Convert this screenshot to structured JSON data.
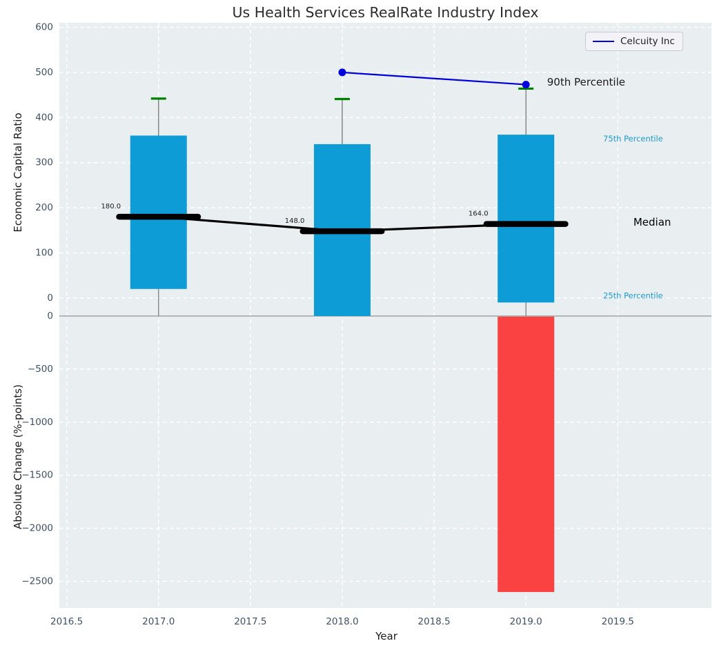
{
  "figure": {
    "title": "Us Health Services RealRate Industry Index",
    "xlabel": "Year",
    "top_ylabel": "Economic Capital Ratio",
    "bottom_ylabel": "Absolute Change (%-points)",
    "legend_label": "Celcuity Inc"
  },
  "colors": {
    "axes_bg": "#e9eef1",
    "grid": "#ffffff",
    "box_blue": "#0d9cd6",
    "bar_red": "#fb4242",
    "whisker_gray": "#7d7d7d",
    "cap_green": "#008000",
    "median_black": "#000000",
    "celcuity_blue": "#0000dd",
    "tick_text": "#3e5166",
    "percentile_text": "#1c9ad0",
    "annotation_text": "#1a1a1a",
    "separator": "#adadad"
  },
  "chart_data": {
    "type": "combo (boxplot + line over bar)",
    "title": "Us Health Services RealRate Industry Index",
    "xlabel": "Year",
    "xlim": [
      2016.46,
      2020.01
    ],
    "xticks": [
      {
        "v": 2016.5,
        "label": "2016.5"
      },
      {
        "v": 2017.0,
        "label": "2017.0"
      },
      {
        "v": 2017.5,
        "label": "2017.5"
      },
      {
        "v": 2018.0,
        "label": "2018.0"
      },
      {
        "v": 2018.5,
        "label": "2018.5"
      },
      {
        "v": 2019.0,
        "label": "2019.0"
      },
      {
        "v": 2019.5,
        "label": "2019.5"
      }
    ],
    "legend": {
      "label": "Celcuity Inc",
      "position": "upper right"
    },
    "panels": [
      {
        "type": "box",
        "axis": "top",
        "ylabel": "Economic Capital Ratio",
        "ylim": [
          -40,
          610
        ],
        "ytick_values": [
          0,
          100,
          200,
          300,
          400,
          500,
          600
        ],
        "yticks": [
          "0",
          "100",
          "200",
          "300",
          "400",
          "500",
          "600"
        ],
        "grid": true,
        "boxes": [
          {
            "year": 2017,
            "q1": 20,
            "q3": 360,
            "whisker_high": 442,
            "median": 180.0,
            "median_label": "180.0"
          },
          {
            "year": 2018,
            "q1": -40,
            "q3": 341,
            "whisker_high": 441,
            "median": 148.0,
            "median_label": "148.0"
          },
          {
            "year": 2019,
            "q1": -10,
            "q3": 362,
            "whisker_high": 464,
            "median": 164.0,
            "median_label": "164.0"
          }
        ],
        "series": [
          {
            "name": "Celcuity Inc",
            "type": "line",
            "x": [
              2018,
              2019
            ],
            "y": [
              500,
              473
            ]
          }
        ],
        "annotations": [
          {
            "id": "annotation-90th-percentile",
            "text": "90th Percentile",
            "x": 2019.115,
            "y": 478,
            "size": 15,
            "color": "#1a1a1a"
          },
          {
            "id": "annotation-75th-percentile",
            "text": "75th Percentile",
            "x": 2019.42,
            "y": 352,
            "size": 11.5,
            "color": "#1c9ad0"
          },
          {
            "id": "annotation-median",
            "text": "Median",
            "x": 2019.585,
            "y": 167,
            "size": 15,
            "color": "#000000"
          },
          {
            "id": "annotation-25th-percentile",
            "text": "25th Percentile",
            "x": 2019.42,
            "y": 4,
            "size": 11.5,
            "color": "#1c9ad0"
          }
        ]
      },
      {
        "type": "bar",
        "axis": "bottom",
        "ylabel": "Absolute Change (%-points)",
        "ylim": [
          -2750,
          0
        ],
        "ytick_values": [
          0,
          -500,
          -1000,
          -1500,
          -2000,
          -2500
        ],
        "yticks": [
          "0",
          "−500",
          "−1000",
          "−1500",
          "−2000",
          "−2500"
        ],
        "grid": true,
        "categories": [
          2019
        ],
        "values": [
          -2600
        ]
      }
    ]
  }
}
